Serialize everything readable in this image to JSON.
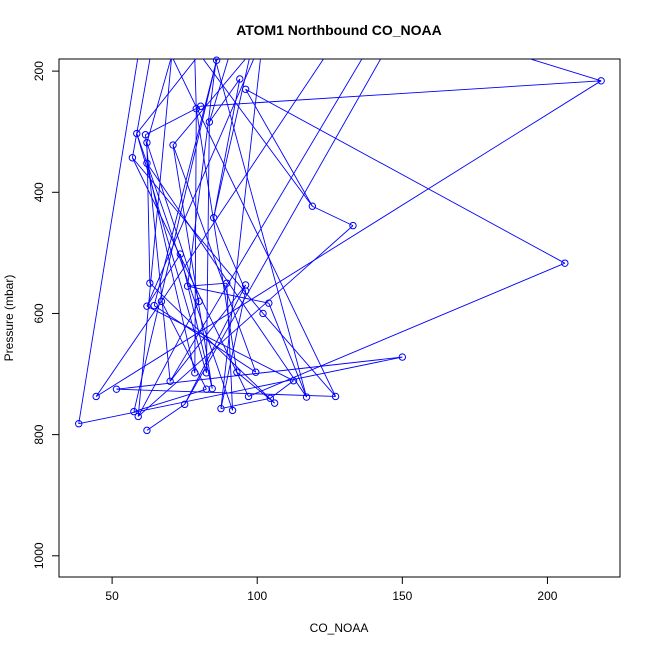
{
  "chart_data": {
    "type": "line",
    "title": "ATOM1 Northbound CO_NOAA",
    "xlabel": "CO_NOAA",
    "ylabel": "Pressure (mbar)",
    "xlim": [
      31.7,
      225
    ],
    "ylim": [
      1035,
      180
    ],
    "y_reversed": true,
    "x_ticks": [
      50,
      100,
      150,
      200
    ],
    "y_ticks": [
      200,
      400,
      600,
      800,
      1000
    ],
    "grid": false,
    "legend": "none",
    "series_color": "#0000FF",
    "marker": "open-circle",
    "series": [
      {
        "points": [
          [
            38.5,
            782
          ],
          [
            150,
            672
          ],
          [
            51.5,
            725
          ],
          [
            127,
            737
          ],
          [
            102,
            600
          ],
          [
            57,
            343
          ],
          [
            97,
            737
          ],
          [
            206,
            517
          ],
          [
            96,
            230
          ],
          [
            119,
            423
          ],
          [
            133,
            455
          ],
          [
            59,
            770
          ],
          [
            80,
            580
          ],
          [
            62,
            318
          ],
          [
            63,
            550
          ],
          [
            106,
            748
          ],
          [
            93,
            697
          ],
          [
            79,
            262
          ],
          [
            78.5,
            698
          ],
          [
            62,
            352
          ],
          [
            117,
            738
          ],
          [
            104,
            583
          ],
          [
            76,
            555
          ],
          [
            89.5,
            550
          ],
          [
            91.5,
            760
          ],
          [
            58.5,
            303
          ],
          [
            82.5,
            698
          ],
          [
            83.5,
            284
          ],
          [
            94,
            213
          ],
          [
            85,
            442
          ],
          [
            96,
            563
          ],
          [
            87.5,
            757
          ],
          [
            104.5,
            740
          ],
          [
            112.5,
            711
          ],
          [
            62,
            588
          ],
          [
            73.5,
            502
          ],
          [
            84.5,
            724
          ],
          [
            71,
            322
          ],
          [
            99.5,
            697
          ],
          [
            64.5,
            587
          ],
          [
            86,
            182
          ],
          [
            57.5,
            762
          ],
          [
            82.5,
            725
          ],
          [
            67,
            580
          ],
          [
            44.5,
            737
          ],
          [
            218.5,
            216
          ],
          [
            80.5,
            258
          ],
          [
            61.5,
            305
          ],
          [
            70,
            712
          ],
          [
            96,
            553
          ],
          [
            75,
            750
          ],
          [
            62,
            793
          ]
        ]
      }
    ],
    "offscale_line_endpoints": [
      [
        61.5,
        100
      ],
      [
        63,
        100
      ],
      [
        66,
        100
      ],
      [
        69,
        100
      ],
      [
        72,
        100
      ],
      [
        75,
        100
      ],
      [
        78,
        100
      ],
      [
        81,
        100
      ],
      [
        88,
        100
      ],
      [
        92,
        100
      ],
      [
        95,
        100
      ],
      [
        101,
        100
      ],
      [
        103,
        100
      ],
      [
        106,
        100
      ],
      [
        110,
        100
      ],
      [
        118,
        100
      ],
      [
        134,
        100
      ],
      [
        140,
        100
      ],
      [
        146,
        100
      ],
      [
        152,
        100
      ]
    ]
  }
}
